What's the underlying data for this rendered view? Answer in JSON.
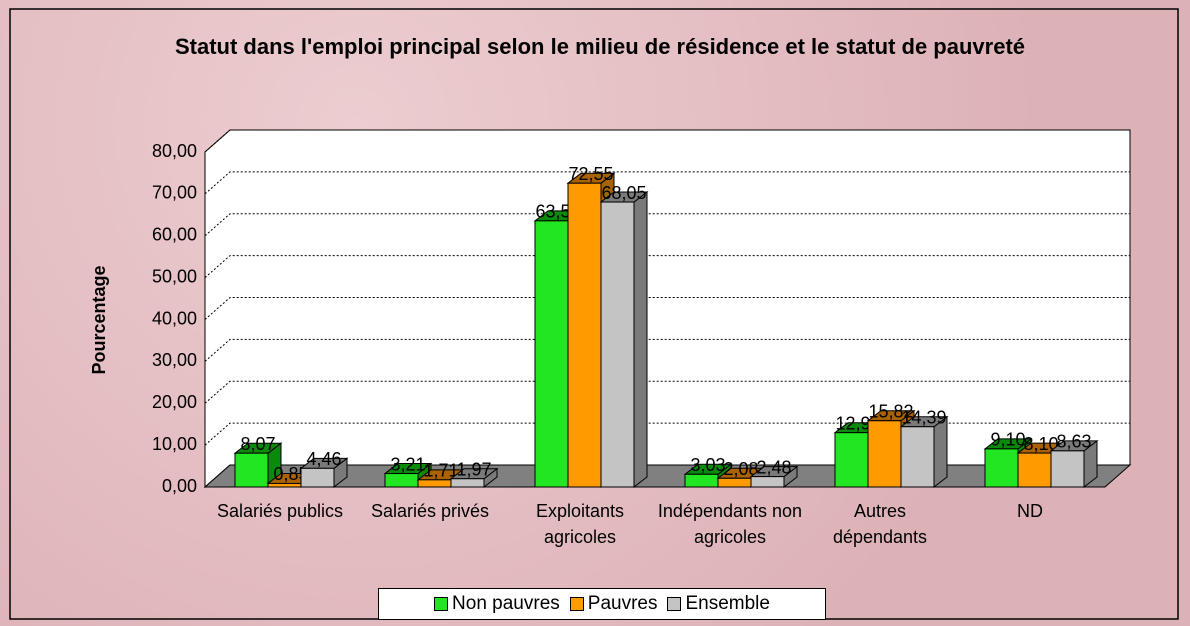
{
  "chart_data": {
    "type": "bar3d",
    "title": "Statut dans l'emploi principal selon le milieu de résidence et le statut de pauvreté",
    "y_label": "Pourcentage",
    "categories": [
      "Salariés publics",
      "Salariés privés",
      "Exploitants agricoles",
      "Indépendants non agricoles",
      "Autres dépendants",
      "ND"
    ],
    "series": [
      {
        "name": "Non pauvres",
        "color": "#22e622",
        "side": "#0a8a0a",
        "values": [
          8.07,
          3.21,
          63.56,
          3.03,
          12.97,
          9.1
        ],
        "value_labels": [
          "8,07",
          "3,21",
          "63,56",
          "3,03",
          "12,97",
          "9,10"
        ]
      },
      {
        "name": "Pauvres",
        "color": "#ff9a00",
        "side": "#a86200",
        "values": [
          0.85,
          1.71,
          72.55,
          2.08,
          15.82,
          8.1
        ],
        "value_labels": [
          "0,85",
          "1,71",
          "72,55",
          "2,08",
          "15,82",
          "8,10"
        ]
      },
      {
        "name": "Ensemble",
        "color": "#c4c4c4",
        "side": "#7a7a7a",
        "values": [
          4.46,
          1.97,
          68.05,
          2.48,
          14.39,
          8.63
        ],
        "value_labels": [
          "4,46",
          "1,97",
          "68,05",
          "2,48",
          "14,39",
          "8,63"
        ]
      }
    ],
    "ylim": [
      0,
      80
    ],
    "yticks": [
      {
        "value": 0,
        "label": "0,00"
      },
      {
        "value": 10,
        "label": "10,00"
      },
      {
        "value": 20,
        "label": "20,00"
      },
      {
        "value": 30,
        "label": "30,00"
      },
      {
        "value": 40,
        "label": "40,00"
      },
      {
        "value": 50,
        "label": "50,00"
      },
      {
        "value": 60,
        "label": "60,00"
      },
      {
        "value": 70,
        "label": "70,00"
      },
      {
        "value": 80,
        "label": "80,00"
      }
    ],
    "grid": true,
    "legend": "bottom"
  }
}
